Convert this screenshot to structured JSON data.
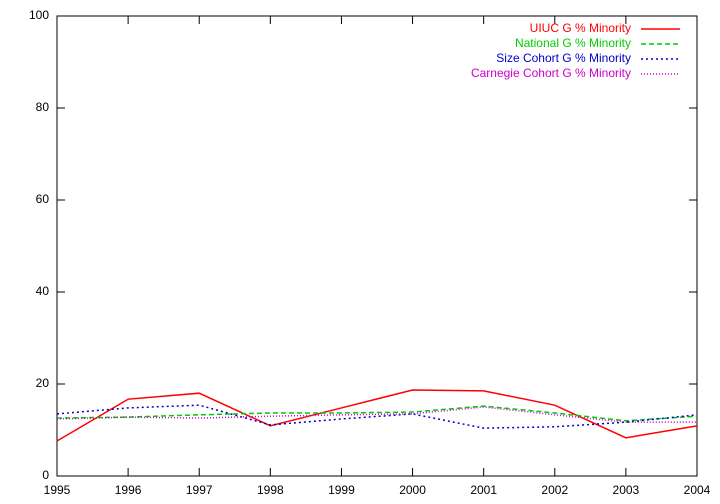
{
  "chart_data": {
    "type": "line",
    "x": [
      1995,
      1996,
      1997,
      1998,
      1999,
      2000,
      2001,
      2002,
      2003,
      2004
    ],
    "xlim": [
      1995,
      2004
    ],
    "xticks": [
      1995,
      1996,
      1997,
      1998,
      1999,
      2000,
      2001,
      2002,
      2003,
      2004
    ],
    "ylim": [
      0,
      100
    ],
    "yticks": [
      0,
      20,
      40,
      60,
      80,
      100
    ],
    "legend": "top-right",
    "series": [
      {
        "name": "UIUC G % Minority",
        "color": "#ff0000",
        "dash": "none",
        "values": [
          7.6,
          16.7,
          18.0,
          10.9,
          14.8,
          18.7,
          18.5,
          15.4,
          8.3,
          10.9
        ]
      },
      {
        "name": "National G % Minority",
        "color": "#00cc00",
        "dash": "5,3",
        "values": [
          12.6,
          12.8,
          13.3,
          13.7,
          13.7,
          13.9,
          15.2,
          13.7,
          12.0,
          13.0
        ]
      },
      {
        "name": "Size Cohort G % Minority",
        "color": "#0000cc",
        "dash": "2,3",
        "values": [
          13.5,
          14.8,
          15.4,
          11.1,
          12.4,
          13.5,
          10.4,
          10.7,
          11.7,
          13.3
        ]
      },
      {
        "name": "Carnegie Cohort G % Minority",
        "color": "#cc00cc",
        "dash": "1,2",
        "values": [
          12.4,
          12.8,
          12.6,
          13.0,
          13.3,
          13.5,
          15.0,
          13.3,
          11.7,
          11.7
        ]
      }
    ]
  }
}
